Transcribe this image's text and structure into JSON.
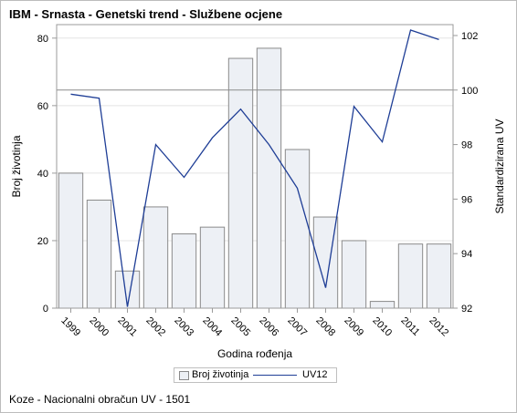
{
  "title": "IBM - Srnasta - Genetski trend - Službene ocjene",
  "footnote": "Koze - Nacionalni obračun UV - 1501",
  "colors": {
    "bar_fill": "#edf0f5",
    "bar_stroke": "#8a8a8a",
    "line": "#1f3e96",
    "reference_line": "#8c8c8c",
    "grid": "#e4e4e4",
    "axis": "#9b9b9b"
  },
  "chart_data": {
    "type": "bar",
    "categories": [
      "1999",
      "2000",
      "2001",
      "2002",
      "2003",
      "2004",
      "2005",
      "2006",
      "2007",
      "2008",
      "2009",
      "2010",
      "2011",
      "2012"
    ],
    "series": [
      {
        "name": "Broj životinja",
        "type": "bar",
        "axis": "left",
        "values": [
          40,
          32,
          11,
          30,
          22,
          24,
          74,
          77,
          47,
          27,
          20,
          2,
          19,
          19
        ]
      },
      {
        "name": "UV12",
        "type": "line",
        "axis": "right",
        "values": [
          99.85,
          99.7,
          92.05,
          98.0,
          96.8,
          98.25,
          99.3,
          98.0,
          96.4,
          92.75,
          99.4,
          98.1,
          102.2,
          101.85
        ]
      }
    ],
    "xlabel": "Godina rođenja",
    "ylabel": "Broj životinja",
    "y2label": "Standardizirana UV",
    "ylim": [
      0,
      84
    ],
    "y2lim": [
      92,
      102.4
    ],
    "yticks": [
      0,
      20,
      40,
      60,
      80
    ],
    "y2ticks": [
      92,
      94,
      96,
      98,
      100,
      102
    ],
    "reference_line_y2": 100,
    "grid": true,
    "legend_position": "bottom-center"
  }
}
